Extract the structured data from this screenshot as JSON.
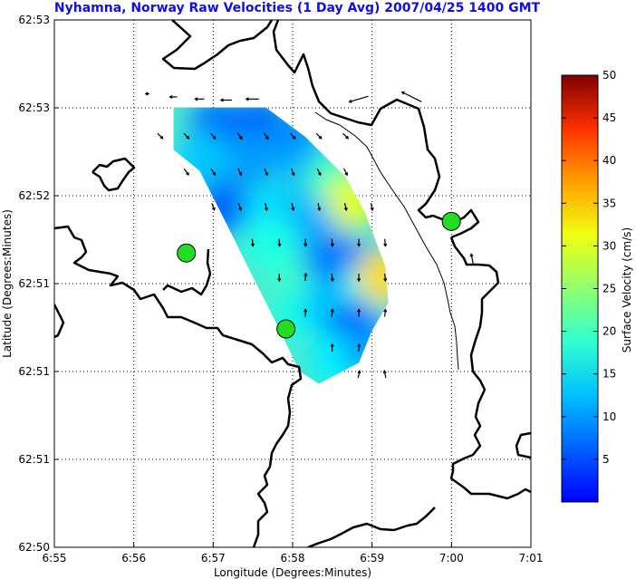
{
  "chart_data": {
    "type": "heatmap",
    "title": "Nyhamna, Norway Raw Velocities (1 Day Avg) 2007/04/25 1400 GMT",
    "xlabel": "Longitude (Degrees:Minutes)",
    "ylabel": "Latitude (Degrees:Minutes)",
    "x_ticks": [
      "6:55",
      "6:56",
      "6:57",
      "6:58",
      "6:59",
      "7:00",
      "7:01"
    ],
    "y_ticks": [
      "62:53",
      "62:53",
      "62:52",
      "62:51",
      "62:51",
      "62:51",
      "62:50"
    ],
    "xlim": [
      6.9167,
      7.0167
    ],
    "ylim": [
      62.8333,
      62.8833
    ],
    "grid": true,
    "colorbar": {
      "label": "Surface Velocity (cm/s)",
      "ticks": [
        5,
        10,
        15,
        20,
        25,
        30,
        35,
        40,
        45,
        50
      ],
      "range": [
        0,
        50
      ],
      "colormap": "jet"
    },
    "sites": [
      {
        "lon": 6.9444,
        "lat": 62.8612
      },
      {
        "lon": 6.9653,
        "lat": 62.854
      },
      {
        "lon": 7.0,
        "lat": 62.8642
      }
    ],
    "coverage_polygon": [
      [
        6.9417,
        62.875
      ],
      [
        6.9611,
        62.875
      ],
      [
        6.9694,
        62.8722
      ],
      [
        6.9778,
        62.8684
      ],
      [
        6.9819,
        62.865
      ],
      [
        6.9861,
        62.86
      ],
      [
        6.9868,
        62.8565
      ],
      [
        6.9833,
        62.8538
      ],
      [
        6.9806,
        62.8508
      ],
      [
        6.9764,
        62.8498
      ],
      [
        6.9722,
        62.8488
      ],
      [
        6.9681,
        62.85
      ],
      [
        6.9639,
        62.854
      ],
      [
        6.9583,
        62.859
      ],
      [
        6.9528,
        62.864
      ],
      [
        6.9472,
        62.869
      ],
      [
        6.9417,
        62.871
      ]
    ],
    "speed_field": [
      {
        "lon": 6.951,
        "lat": 62.8735,
        "v": 12
      },
      {
        "lon": 6.96,
        "lat": 62.8733,
        "v": 11
      },
      {
        "lon": 6.967,
        "lat": 62.872,
        "v": 13
      },
      {
        "lon": 6.948,
        "lat": 62.87,
        "v": 16
      },
      {
        "lon": 6.958,
        "lat": 62.87,
        "v": 14
      },
      {
        "lon": 6.97,
        "lat": 62.869,
        "v": 15
      },
      {
        "lon": 6.975,
        "lat": 62.868,
        "v": 22
      },
      {
        "lon": 6.979,
        "lat": 62.866,
        "v": 30
      },
      {
        "lon": 6.952,
        "lat": 62.8655,
        "v": 11
      },
      {
        "lon": 6.962,
        "lat": 62.865,
        "v": 17
      },
      {
        "lon": 6.97,
        "lat": 62.864,
        "v": 15
      },
      {
        "lon": 6.965,
        "lat": 62.8605,
        "v": 22
      },
      {
        "lon": 6.962,
        "lat": 62.862,
        "v": 20
      },
      {
        "lon": 6.974,
        "lat": 62.861,
        "v": 13
      },
      {
        "lon": 6.979,
        "lat": 62.86,
        "v": 12
      },
      {
        "lon": 6.983,
        "lat": 62.858,
        "v": 20
      },
      {
        "lon": 6.986,
        "lat": 62.859,
        "v": 33
      },
      {
        "lon": 6.968,
        "lat": 62.8555,
        "v": 20
      },
      {
        "lon": 6.974,
        "lat": 62.856,
        "v": 16
      },
      {
        "lon": 6.98,
        "lat": 62.854,
        "v": 10
      },
      {
        "lon": 6.976,
        "lat": 62.851,
        "v": 18
      },
      {
        "lon": 6.983,
        "lat": 62.852,
        "v": 14
      }
    ],
    "vectors": [
      {
        "lon": 6.9361,
        "lat": 62.8763,
        "u": 1,
        "v": 0,
        "s": 2
      },
      {
        "lon": 6.9417,
        "lat": 62.876,
        "u": -1,
        "v": 0,
        "s": 4
      },
      {
        "lon": 6.9472,
        "lat": 62.8758,
        "u": -1,
        "v": 0,
        "s": 5
      },
      {
        "lon": 6.9528,
        "lat": 62.8757,
        "u": -1,
        "v": 0,
        "s": 6
      },
      {
        "lon": 6.9583,
        "lat": 62.8758,
        "u": -1,
        "v": 0,
        "s": 7
      },
      {
        "lon": 6.9806,
        "lat": 62.8758,
        "u": -1,
        "v": -0.3,
        "s": 11
      },
      {
        "lon": 6.9917,
        "lat": 62.876,
        "u": -1,
        "v": 0.5,
        "s": 12
      },
      {
        "lon": 6.9389,
        "lat": 62.8723,
        "u": 0.5,
        "v": -0.5,
        "s": 4
      },
      {
        "lon": 6.9444,
        "lat": 62.8723,
        "u": 0.5,
        "v": -0.5,
        "s": 4
      },
      {
        "lon": 6.95,
        "lat": 62.8723,
        "u": 0.5,
        "v": -0.6,
        "s": 4
      },
      {
        "lon": 6.9556,
        "lat": 62.8723,
        "u": 0.5,
        "v": -0.7,
        "s": 4
      },
      {
        "lon": 6.9611,
        "lat": 62.8723,
        "u": 0.5,
        "v": -0.7,
        "s": 4
      },
      {
        "lon": 6.9667,
        "lat": 62.8723,
        "u": 0.5,
        "v": -0.6,
        "s": 4
      },
      {
        "lon": 6.9722,
        "lat": 62.8723,
        "u": 0.6,
        "v": -0.6,
        "s": 4
      },
      {
        "lon": 6.9778,
        "lat": 62.8723,
        "u": 0.6,
        "v": -0.6,
        "s": 4
      },
      {
        "lon": 6.9444,
        "lat": 62.8689,
        "u": 0.5,
        "v": -0.7,
        "s": 4
      },
      {
        "lon": 6.95,
        "lat": 62.8689,
        "u": 0.5,
        "v": -0.7,
        "s": 4
      },
      {
        "lon": 6.9556,
        "lat": 62.8689,
        "u": 0.4,
        "v": -0.8,
        "s": 4
      },
      {
        "lon": 6.9611,
        "lat": 62.8689,
        "u": 0.4,
        "v": -0.8,
        "s": 4
      },
      {
        "lon": 6.9667,
        "lat": 62.8689,
        "u": 0.3,
        "v": -0.8,
        "s": 4
      },
      {
        "lon": 6.9722,
        "lat": 62.8689,
        "u": 0.4,
        "v": -0.8,
        "s": 4
      },
      {
        "lon": 6.9778,
        "lat": 62.8689,
        "u": 0.4,
        "v": -0.8,
        "s": 4
      },
      {
        "lon": 6.95,
        "lat": 62.8656,
        "u": 0.3,
        "v": -0.8,
        "s": 4
      },
      {
        "lon": 6.9556,
        "lat": 62.8656,
        "u": 0.3,
        "v": -0.9,
        "s": 4
      },
      {
        "lon": 6.9611,
        "lat": 62.8656,
        "u": 0.2,
        "v": -0.9,
        "s": 4
      },
      {
        "lon": 6.9667,
        "lat": 62.8656,
        "u": 0.2,
        "v": -0.9,
        "s": 4
      },
      {
        "lon": 6.9722,
        "lat": 62.8656,
        "u": 0.2,
        "v": -0.9,
        "s": 4
      },
      {
        "lon": 6.9778,
        "lat": 62.8656,
        "u": 0.2,
        "v": -0.9,
        "s": 4
      },
      {
        "lon": 6.9833,
        "lat": 62.8656,
        "u": 0.2,
        "v": -0.9,
        "s": 4
      },
      {
        "lon": 6.9583,
        "lat": 62.8622,
        "u": 0.1,
        "v": -1,
        "s": 4
      },
      {
        "lon": 6.9639,
        "lat": 62.8622,
        "u": 0.1,
        "v": -1,
        "s": 4
      },
      {
        "lon": 6.9694,
        "lat": 62.8622,
        "u": 0,
        "v": -1,
        "s": 4
      },
      {
        "lon": 6.975,
        "lat": 62.8622,
        "u": 0.1,
        "v": -1,
        "s": 4
      },
      {
        "lon": 6.9806,
        "lat": 62.8622,
        "u": 0,
        "v": -1,
        "s": 4
      },
      {
        "lon": 6.9861,
        "lat": 62.8622,
        "u": 0.1,
        "v": -1,
        "s": 4
      },
      {
        "lon": 6.9639,
        "lat": 62.8589,
        "u": 0,
        "v": -1,
        "s": 4
      },
      {
        "lon": 6.9694,
        "lat": 62.8589,
        "u": 0.1,
        "v": 1,
        "s": 4
      },
      {
        "lon": 6.975,
        "lat": 62.8589,
        "u": 0.1,
        "v": -1,
        "s": 4
      },
      {
        "lon": 6.9806,
        "lat": 62.8589,
        "u": 0,
        "v": -1,
        "s": 4
      },
      {
        "lon": 6.9861,
        "lat": 62.8589,
        "u": 0.1,
        "v": -1,
        "s": 4
      },
      {
        "lon": 6.9694,
        "lat": 62.8555,
        "u": 0,
        "v": 1,
        "s": 4
      },
      {
        "lon": 6.975,
        "lat": 62.8555,
        "u": 0.1,
        "v": 1,
        "s": 4
      },
      {
        "lon": 6.9806,
        "lat": 62.8555,
        "u": 0,
        "v": 1,
        "s": 4
      },
      {
        "lon": 6.9861,
        "lat": 62.8555,
        "u": 0.1,
        "v": 1,
        "s": 4
      },
      {
        "lon": 6.975,
        "lat": 62.8522,
        "u": 0,
        "v": 1,
        "s": 4
      },
      {
        "lon": 6.9806,
        "lat": 62.8522,
        "u": 0.1,
        "v": 1,
        "s": 4
      },
      {
        "lon": 6.9806,
        "lat": 62.8497,
        "u": 0.2,
        "v": 1,
        "s": 4
      },
      {
        "lon": 6.9861,
        "lat": 62.8497,
        "u": -0.2,
        "v": 1,
        "s": 4
      },
      {
        "lon": 7.0044,
        "lat": 62.8606,
        "u": -0.2,
        "v": 1,
        "s": 6
      }
    ]
  }
}
